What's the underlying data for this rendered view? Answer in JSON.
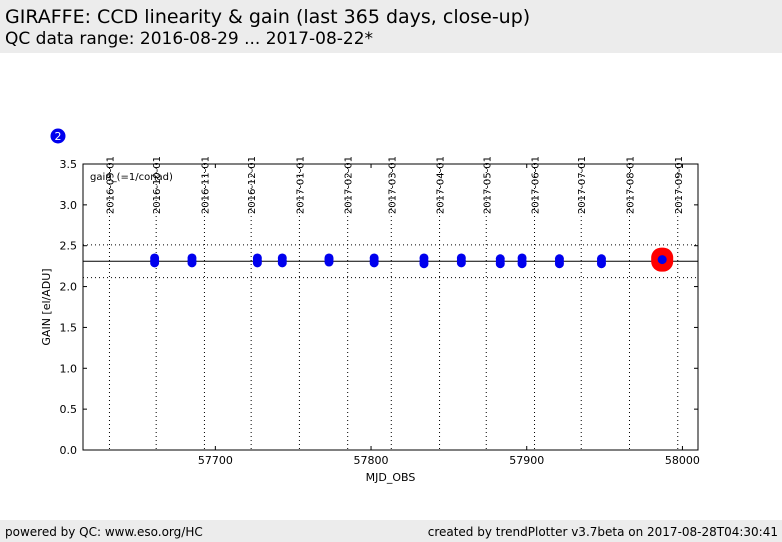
{
  "header": {
    "title": "GIRAFFE: CCD linearity & gain (last 365 days, close-up)",
    "subtitle": "QC data range: 2016-08-29 ... 2017-08-22*"
  },
  "badge": {
    "label": "2",
    "color": "#0000ee"
  },
  "footer": {
    "left": "powered by QC: www.eso.org/HC",
    "right": "created by trendPlotter v3.7beta on 2017-08-28T04:30:41"
  },
  "chart_data": {
    "type": "scatter",
    "title": "",
    "xlabel": "MJD_OBS",
    "ylabel": "GAIN [el/ADU]",
    "xlim": [
      57615,
      58010
    ],
    "ylim": [
      0.0,
      3.5
    ],
    "grid": false,
    "legend_label": "gain_(=1/conad)",
    "x_ticks": [
      57700,
      57800,
      57900,
      58000
    ],
    "y_ticks": [
      0.0,
      0.5,
      1.0,
      1.5,
      2.0,
      2.5,
      3.0,
      3.5
    ],
    "y_tick_labels": [
      "0.0",
      "0.5",
      "1.0",
      "1.5",
      "2.0",
      "2.5",
      "3.0",
      "3.5"
    ],
    "date_ticks": [
      {
        "mjd": 57632,
        "label": "2016-09-01"
      },
      {
        "mjd": 57662,
        "label": "2016-10-01"
      },
      {
        "mjd": 57693,
        "label": "2016-11-01"
      },
      {
        "mjd": 57723,
        "label": "2016-12-01"
      },
      {
        "mjd": 57754,
        "label": "2017-01-01"
      },
      {
        "mjd": 57785,
        "label": "2017-02-01"
      },
      {
        "mjd": 57813,
        "label": "2017-03-01"
      },
      {
        "mjd": 57844,
        "label": "2017-04-01"
      },
      {
        "mjd": 57874,
        "label": "2017-05-01"
      },
      {
        "mjd": 57905,
        "label": "2017-06-01"
      },
      {
        "mjd": 57935,
        "label": "2017-07-01"
      },
      {
        "mjd": 57966,
        "label": "2017-08-01"
      },
      {
        "mjd": 57997,
        "label": "2017-09-01"
      }
    ],
    "reference": {
      "value": 2.31,
      "lower": 2.11,
      "upper": 2.51
    },
    "series": [
      {
        "color": "#0000ee",
        "points": [
          {
            "x": 57661,
            "y": [
              2.29,
              2.32,
              2.35
            ]
          },
          {
            "x": 57685,
            "y": [
              2.29,
              2.32,
              2.35
            ]
          },
          {
            "x": 57727,
            "y": [
              2.29,
              2.32,
              2.35
            ]
          },
          {
            "x": 57743,
            "y": [
              2.29,
              2.32,
              2.35
            ]
          },
          {
            "x": 57773,
            "y": [
              2.3,
              2.33,
              2.35
            ]
          },
          {
            "x": 57802,
            "y": [
              2.29,
              2.32,
              2.35
            ]
          },
          {
            "x": 57834,
            "y": [
              2.28,
              2.31,
              2.35
            ]
          },
          {
            "x": 57858,
            "y": [
              2.29,
              2.32,
              2.35
            ]
          },
          {
            "x": 57883,
            "y": [
              2.28,
              2.31,
              2.34
            ]
          },
          {
            "x": 57897,
            "y": [
              2.28,
              2.31,
              2.35
            ]
          },
          {
            "x": 57921,
            "y": [
              2.28,
              2.31,
              2.34
            ]
          },
          {
            "x": 57948,
            "y": [
              2.28,
              2.31,
              2.34
            ]
          }
        ]
      }
    ],
    "latest": {
      "x": 57987,
      "y": 2.33,
      "ring_color": "#ff0000"
    }
  }
}
